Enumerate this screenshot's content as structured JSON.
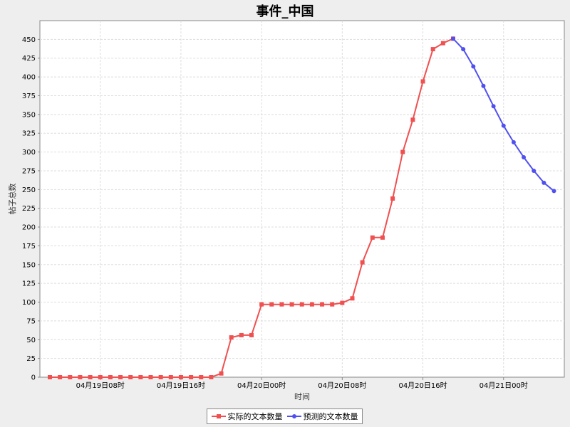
{
  "chart_data": {
    "type": "line",
    "title": "事件_中国",
    "xlabel": "时间",
    "ylabel": "帖子总数",
    "ylim": [
      0,
      475
    ],
    "y_ticks": [
      0,
      25,
      50,
      75,
      100,
      125,
      150,
      175,
      200,
      225,
      250,
      275,
      300,
      325,
      350,
      375,
      400,
      425,
      450
    ],
    "x_tick_labels": [
      "04月19日08时",
      "04月19日16时",
      "04月20日00时",
      "04月20日08时",
      "04月20日16时",
      "04月21日00时"
    ],
    "x_interval_hours": 1,
    "grid": true,
    "legend_position": "bottom",
    "series": [
      {
        "name": "实际的文本数量",
        "color": "#f05050",
        "marker": "square",
        "x_start": "04月19日03时",
        "values": [
          0,
          0,
          0,
          0,
          0,
          0,
          0,
          0,
          0,
          0,
          0,
          0,
          0,
          0,
          0,
          0,
          0,
          5,
          53,
          56,
          56,
          97,
          97,
          97,
          97,
          97,
          97,
          97,
          97,
          99,
          105,
          153,
          186,
          186,
          238,
          300,
          343,
          394,
          437,
          445,
          451
        ]
      },
      {
        "name": "预测的文本数量",
        "color": "#5050f0",
        "marker": "circle",
        "x_start": "04月20日19时",
        "values": [
          451,
          437,
          414,
          388,
          361,
          335,
          313,
          293,
          275,
          259,
          248
        ]
      }
    ]
  }
}
